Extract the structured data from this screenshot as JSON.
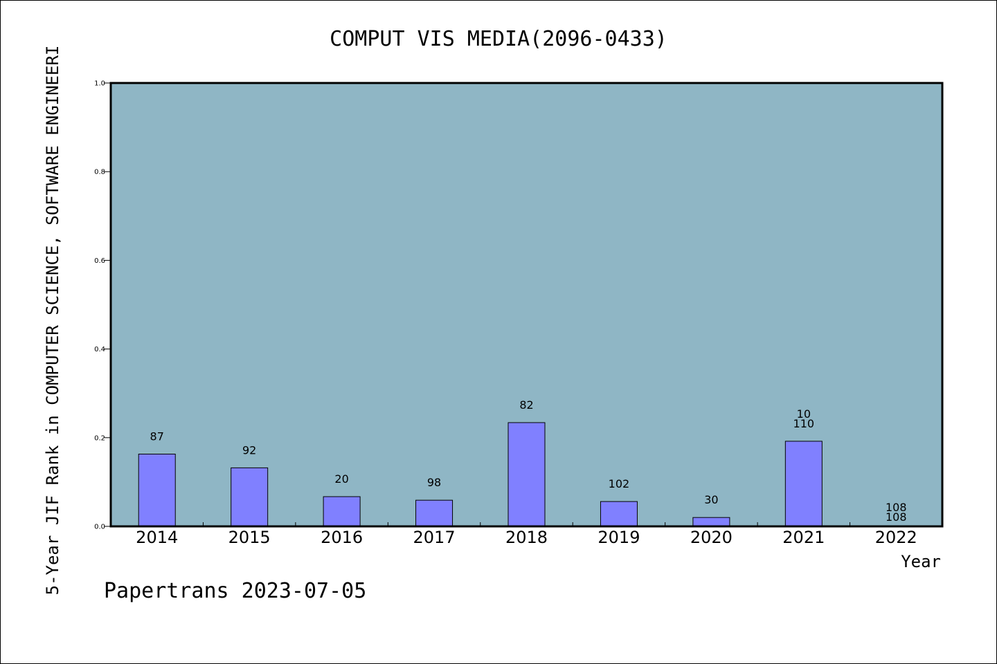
{
  "chart_data": {
    "type": "bar",
    "title": "COMPUT VIS MEDIA(2096-0433)",
    "xlabel": "Year",
    "ylabel": "5-Year JIF Rank in COMPUTER SCIENCE, SOFTWARE ENGINEERI",
    "ylim": [
      0,
      1.0
    ],
    "yticks": [
      "0.0",
      "0.2",
      "0.4",
      "0.6",
      "0.8",
      "1.0"
    ],
    "grid": false,
    "categories": [
      "2014",
      "2015",
      "2016",
      "2017",
      "2018",
      "2019",
      "2020",
      "2021",
      "2022"
    ],
    "values": [
      0.163,
      0.132,
      0.067,
      0.059,
      0.234,
      0.056,
      0.02,
      0.192,
      0.0
    ],
    "labels": [
      [
        "87"
      ],
      [
        "92"
      ],
      [
        "20"
      ],
      [
        "98"
      ],
      [
        "82"
      ],
      [
        "102"
      ],
      [
        "30"
      ],
      [
        "10",
        "110"
      ],
      [
        "108",
        "108"
      ]
    ],
    "colors": {
      "plot_background": "#8fb6c5",
      "bar_fill": "#8080ff",
      "bar_stroke": "#000000"
    }
  },
  "footer": {
    "text": "Papertrans 2023-07-05"
  }
}
